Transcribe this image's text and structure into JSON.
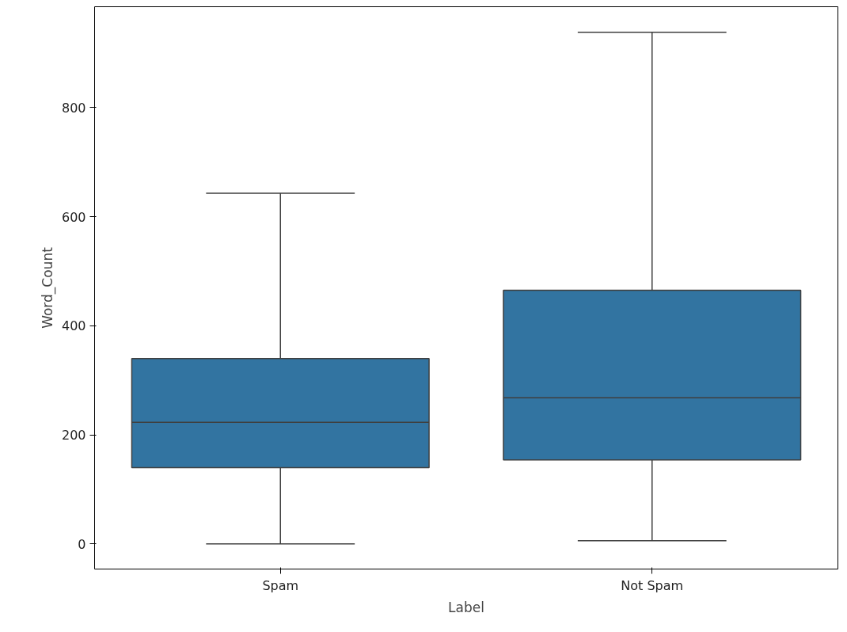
{
  "chart_data": {
    "type": "box",
    "xlabel": "Label",
    "ylabel": "Word_Count",
    "categories": [
      "Spam",
      "Not Spam"
    ],
    "boxes": [
      {
        "low": 0,
        "q1": 140,
        "median": 223,
        "q3": 340,
        "high": 643
      },
      {
        "low": 6,
        "q1": 154,
        "median": 268,
        "q3": 465,
        "high": 938
      }
    ],
    "color": "#3274a1",
    "ylim": [
      -46,
      985
    ],
    "yticks": [
      0,
      200,
      400,
      600,
      800
    ],
    "grid": false
  }
}
